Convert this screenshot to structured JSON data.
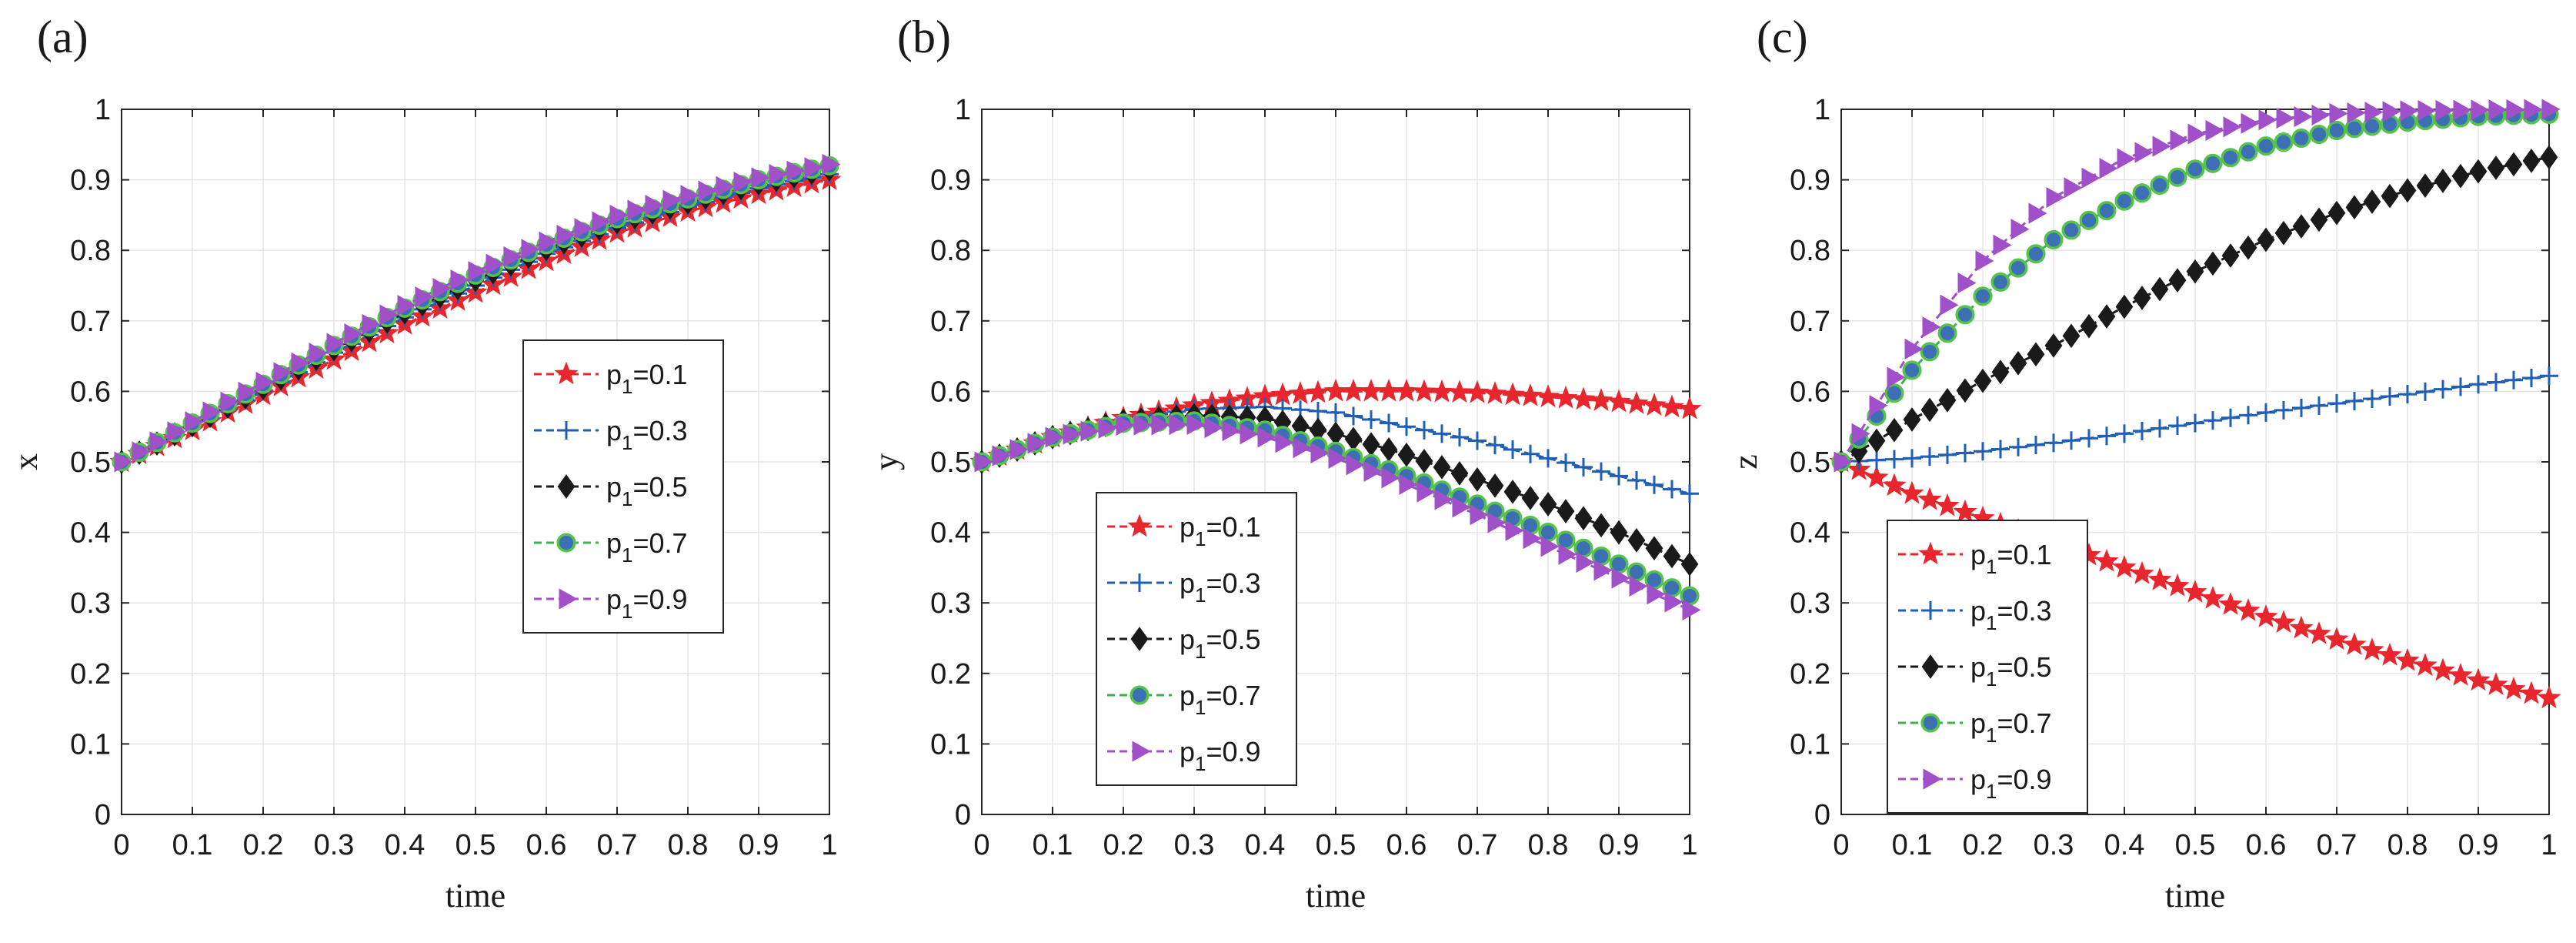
{
  "colors": {
    "series": [
      "#e8262d",
      "#1f5fb5",
      "#1a1a1a",
      "#3cb44a",
      "#a050c8"
    ],
    "marker_fill": [
      "#e8262d",
      "#1f5fb5",
      "#1a1a1a",
      "#3c6fb4",
      "#a050c8"
    ],
    "marker_stroke": [
      "#e8262d",
      "#1f5fb5",
      "#1a1a1a",
      "#54c24b",
      "#a050c8"
    ],
    "grid": "#e6e6e6",
    "axis": "#262626"
  },
  "markers": [
    "star",
    "plus",
    "diamond",
    "circle",
    "triangle-right"
  ],
  "chart_data": [
    {
      "type": "line",
      "panel_label": "(a)",
      "xlabel": "time",
      "ylabel": "x",
      "xlim": [
        0,
        1
      ],
      "ylim": [
        0,
        1
      ],
      "xticks": [
        "0",
        "0.1",
        "0.2",
        "0.3",
        "0.4",
        "0.5",
        "0.6",
        "0.7",
        "0.8",
        "0.9",
        "1"
      ],
      "yticks": [
        "0",
        "0.1",
        "0.2",
        "0.3",
        "0.4",
        "0.5",
        "0.6",
        "0.7",
        "0.8",
        "0.9",
        "1"
      ],
      "legend_position": "center-right",
      "x": [
        0,
        0.1,
        0.2,
        0.3,
        0.4,
        0.5,
        0.6,
        0.7,
        0.8,
        0.9,
        1.0
      ],
      "series": [
        {
          "name_main": "p",
          "name_sub": "1",
          "name_rest": "=0.1",
          "values": [
            0.5,
            0.545,
            0.595,
            0.645,
            0.695,
            0.74,
            0.785,
            0.825,
            0.855,
            0.88,
            0.9
          ]
        },
        {
          "name_main": "p",
          "name_sub": "1",
          "name_rest": "=0.3",
          "values": [
            0.5,
            0.55,
            0.6,
            0.655,
            0.705,
            0.75,
            0.795,
            0.832,
            0.862,
            0.888,
            0.908
          ]
        },
        {
          "name_main": "p",
          "name_sub": "1",
          "name_rest": "=0.5",
          "values": [
            0.5,
            0.552,
            0.605,
            0.66,
            0.712,
            0.758,
            0.802,
            0.84,
            0.868,
            0.895,
            0.915
          ]
        },
        {
          "name_main": "p",
          "name_sub": "1",
          "name_rest": "=0.7",
          "values": [
            0.5,
            0.555,
            0.61,
            0.665,
            0.718,
            0.765,
            0.808,
            0.845,
            0.873,
            0.9,
            0.92
          ]
        },
        {
          "name_main": "p",
          "name_sub": "1",
          "name_rest": "=0.9",
          "values": [
            0.5,
            0.557,
            0.613,
            0.668,
            0.722,
            0.77,
            0.812,
            0.85,
            0.878,
            0.903,
            0.922
          ]
        }
      ]
    },
    {
      "type": "line",
      "panel_label": "(b)",
      "xlabel": "time",
      "ylabel": "y",
      "xlim": [
        0,
        1
      ],
      "ylim": [
        0,
        1
      ],
      "xticks": [
        "0",
        "0.1",
        "0.2",
        "0.3",
        "0.4",
        "0.5",
        "0.6",
        "0.7",
        "0.8",
        "0.9",
        "1"
      ],
      "yticks": [
        "0",
        "0.1",
        "0.2",
        "0.3",
        "0.4",
        "0.5",
        "0.6",
        "0.7",
        "0.8",
        "0.9",
        "1"
      ],
      "legend_position": "bottom-left",
      "x": [
        0,
        0.1,
        0.2,
        0.3,
        0.4,
        0.5,
        0.6,
        0.7,
        0.8,
        0.9,
        1.0
      ],
      "series": [
        {
          "name_main": "p",
          "name_sub": "1",
          "name_rest": "=0.1",
          "values": [
            0.5,
            0.535,
            0.562,
            0.58,
            0.593,
            0.6,
            0.6,
            0.598,
            0.592,
            0.585,
            0.575
          ]
        },
        {
          "name_main": "p",
          "name_sub": "1",
          "name_rest": "=0.3",
          "values": [
            0.5,
            0.535,
            0.56,
            0.575,
            0.578,
            0.57,
            0.55,
            0.53,
            0.505,
            0.48,
            0.455
          ]
        },
        {
          "name_main": "p",
          "name_sub": "1",
          "name_rest": "=0.5",
          "values": [
            0.5,
            0.535,
            0.558,
            0.566,
            0.562,
            0.54,
            0.51,
            0.475,
            0.44,
            0.4,
            0.355
          ]
        },
        {
          "name_main": "p",
          "name_sub": "1",
          "name_rest": "=0.7",
          "values": [
            0.5,
            0.535,
            0.555,
            0.558,
            0.545,
            0.515,
            0.48,
            0.44,
            0.4,
            0.355,
            0.31
          ]
        },
        {
          "name_main": "p",
          "name_sub": "1",
          "name_rest": "=0.9",
          "values": [
            0.5,
            0.535,
            0.552,
            0.553,
            0.535,
            0.505,
            0.468,
            0.425,
            0.38,
            0.335,
            0.29
          ]
        }
      ]
    },
    {
      "type": "line",
      "panel_label": "(c)",
      "xlabel": "time",
      "ylabel": "z",
      "xlim": [
        0,
        1
      ],
      "ylim": [
        0,
        1
      ],
      "xticks": [
        "0",
        "0.1",
        "0.2",
        "0.3",
        "0.4",
        "0.5",
        "0.6",
        "0.7",
        "0.8",
        "0.9",
        "1"
      ],
      "yticks": [
        "0",
        "0.1",
        "0.2",
        "0.3",
        "0.4",
        "0.5",
        "0.6",
        "0.7",
        "0.8",
        "0.9",
        "1"
      ],
      "legend_position": "bottom-left",
      "x": [
        0,
        0.1,
        0.2,
        0.3,
        0.4,
        0.5,
        0.6,
        0.7,
        0.8,
        0.9,
        1.0
      ],
      "series": [
        {
          "name_main": "p",
          "name_sub": "1",
          "name_rest": "=0.1",
          "values": [
            0.5,
            0.455,
            0.42,
            0.385,
            0.35,
            0.315,
            0.28,
            0.248,
            0.218,
            0.19,
            0.165
          ]
        },
        {
          "name_main": "p",
          "name_sub": "1",
          "name_rest": "=0.3",
          "values": [
            0.5,
            0.505,
            0.515,
            0.527,
            0.54,
            0.555,
            0.57,
            0.583,
            0.596,
            0.61,
            0.622
          ]
        },
        {
          "name_main": "p",
          "name_sub": "1",
          "name_rest": "=0.5",
          "values": [
            0.5,
            0.56,
            0.615,
            0.665,
            0.72,
            0.77,
            0.815,
            0.853,
            0.885,
            0.912,
            0.932
          ]
        },
        {
          "name_main": "p",
          "name_sub": "1",
          "name_rest": "=0.7",
          "values": [
            0.5,
            0.63,
            0.735,
            0.815,
            0.87,
            0.915,
            0.948,
            0.97,
            0.982,
            0.99,
            0.993
          ]
        },
        {
          "name_main": "p",
          "name_sub": "1",
          "name_rest": "=0.9",
          "values": [
            0.5,
            0.66,
            0.785,
            0.875,
            0.93,
            0.965,
            0.985,
            0.994,
            0.998,
            0.999,
            1.0
          ]
        }
      ]
    }
  ]
}
